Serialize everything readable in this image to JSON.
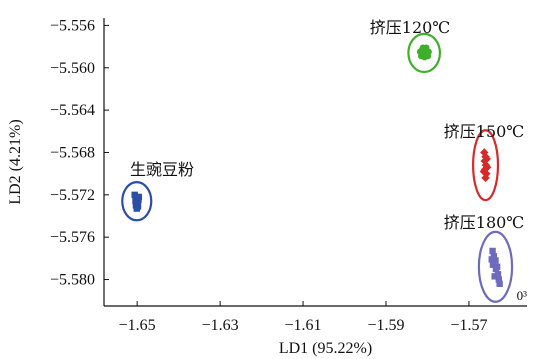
{
  "chart_data": {
    "type": "scatter",
    "xlabel": "LD1 (95.22%)",
    "ylabel": "LD2 (4.21%)",
    "xlim": [
      -1.658,
      -1.556
    ],
    "ylim": [
      -5.5825,
      -5.5553
    ],
    "x_ticks": [
      -1.65,
      -1.63,
      -1.61,
      -1.59,
      -1.57
    ],
    "x_tick_labels": [
      "−1.65",
      "−1.63",
      "−1.61",
      "−1.59",
      "−1.57"
    ],
    "y_ticks": [
      -5.556,
      -5.56,
      -5.564,
      -5.568,
      -5.572,
      -5.576,
      -5.58
    ],
    "y_tick_labels": [
      "−5.556",
      "−5.560",
      "−5.564",
      "−5.568",
      "−5.572",
      "−5.576",
      "−5.580"
    ],
    "x_axis_exponent": "0³",
    "grid": false,
    "series": [
      {
        "name": "生豌豆粉",
        "color": "#2b4fa8",
        "marker": "square",
        "points": [
          [
            -1.6506,
            -5.572
          ],
          [
            -1.6502,
            -5.5722
          ],
          [
            -1.6499,
            -5.5724
          ],
          [
            -1.6504,
            -5.5726
          ],
          [
            -1.65,
            -5.5728
          ],
          [
            -1.6497,
            -5.5725
          ],
          [
            -1.6503,
            -5.573
          ],
          [
            -1.6498,
            -5.5731
          ],
          [
            -1.6501,
            -5.5733
          ],
          [
            -1.6496,
            -5.5722
          ]
        ],
        "ellipse": {
          "center": [
            -1.6501,
            -5.5726
          ],
          "rx": 0.0035,
          "ry": 0.0018
        }
      },
      {
        "name": "挤压120℃",
        "color": "#3fae2a",
        "marker": "circle",
        "points": [
          [
            -1.5818,
            -5.5585
          ],
          [
            -1.5813,
            -5.5583
          ],
          [
            -1.5809,
            -5.5586
          ],
          [
            -1.5805,
            -5.5584
          ],
          [
            -1.5801,
            -5.5587
          ],
          [
            -1.5797,
            -5.5585
          ],
          [
            -1.5815,
            -5.5589
          ],
          [
            -1.5807,
            -5.559
          ],
          [
            -1.5799,
            -5.5589
          ],
          [
            -1.5811,
            -5.5581
          ],
          [
            -1.5803,
            -5.5581
          ]
        ],
        "ellipse": {
          "center": [
            -1.5808,
            -5.5586
          ],
          "rx": 0.0038,
          "ry": 0.0018
        }
      },
      {
        "name": "挤压150℃",
        "color": "#d42a2a",
        "marker": "diamond",
        "points": [
          [
            -1.5663,
            -5.568
          ],
          [
            -1.566,
            -5.5684
          ],
          [
            -1.5662,
            -5.5688
          ],
          [
            -1.5659,
            -5.5692
          ],
          [
            -1.5661,
            -5.5696
          ],
          [
            -1.5658,
            -5.57
          ],
          [
            -1.566,
            -5.5704
          ],
          [
            -1.5664,
            -5.5698
          ],
          [
            -1.5657,
            -5.5686
          ],
          [
            -1.5656,
            -5.5694
          ]
        ],
        "ellipse": {
          "center": [
            -1.566,
            -5.5692
          ],
          "rx": 0.003,
          "ry": 0.0033
        }
      },
      {
        "name": "挤压180℃",
        "color": "#6e6bbf",
        "marker": "square",
        "points": [
          [
            -1.5643,
            -5.5773
          ],
          [
            -1.564,
            -5.5778
          ],
          [
            -1.5636,
            -5.5782
          ],
          [
            -1.5642,
            -5.5786
          ],
          [
            -1.5635,
            -5.579
          ],
          [
            -1.563,
            -5.5795
          ],
          [
            -1.5628,
            -5.58
          ],
          [
            -1.5638,
            -5.5797
          ],
          [
            -1.5632,
            -5.5788
          ],
          [
            -1.5626,
            -5.5804
          ],
          [
            -1.5645,
            -5.5781
          ]
        ],
        "ellipse": {
          "center": [
            -1.5636,
            -5.5788
          ],
          "rx": 0.004,
          "ry": 0.0033
        }
      }
    ]
  }
}
